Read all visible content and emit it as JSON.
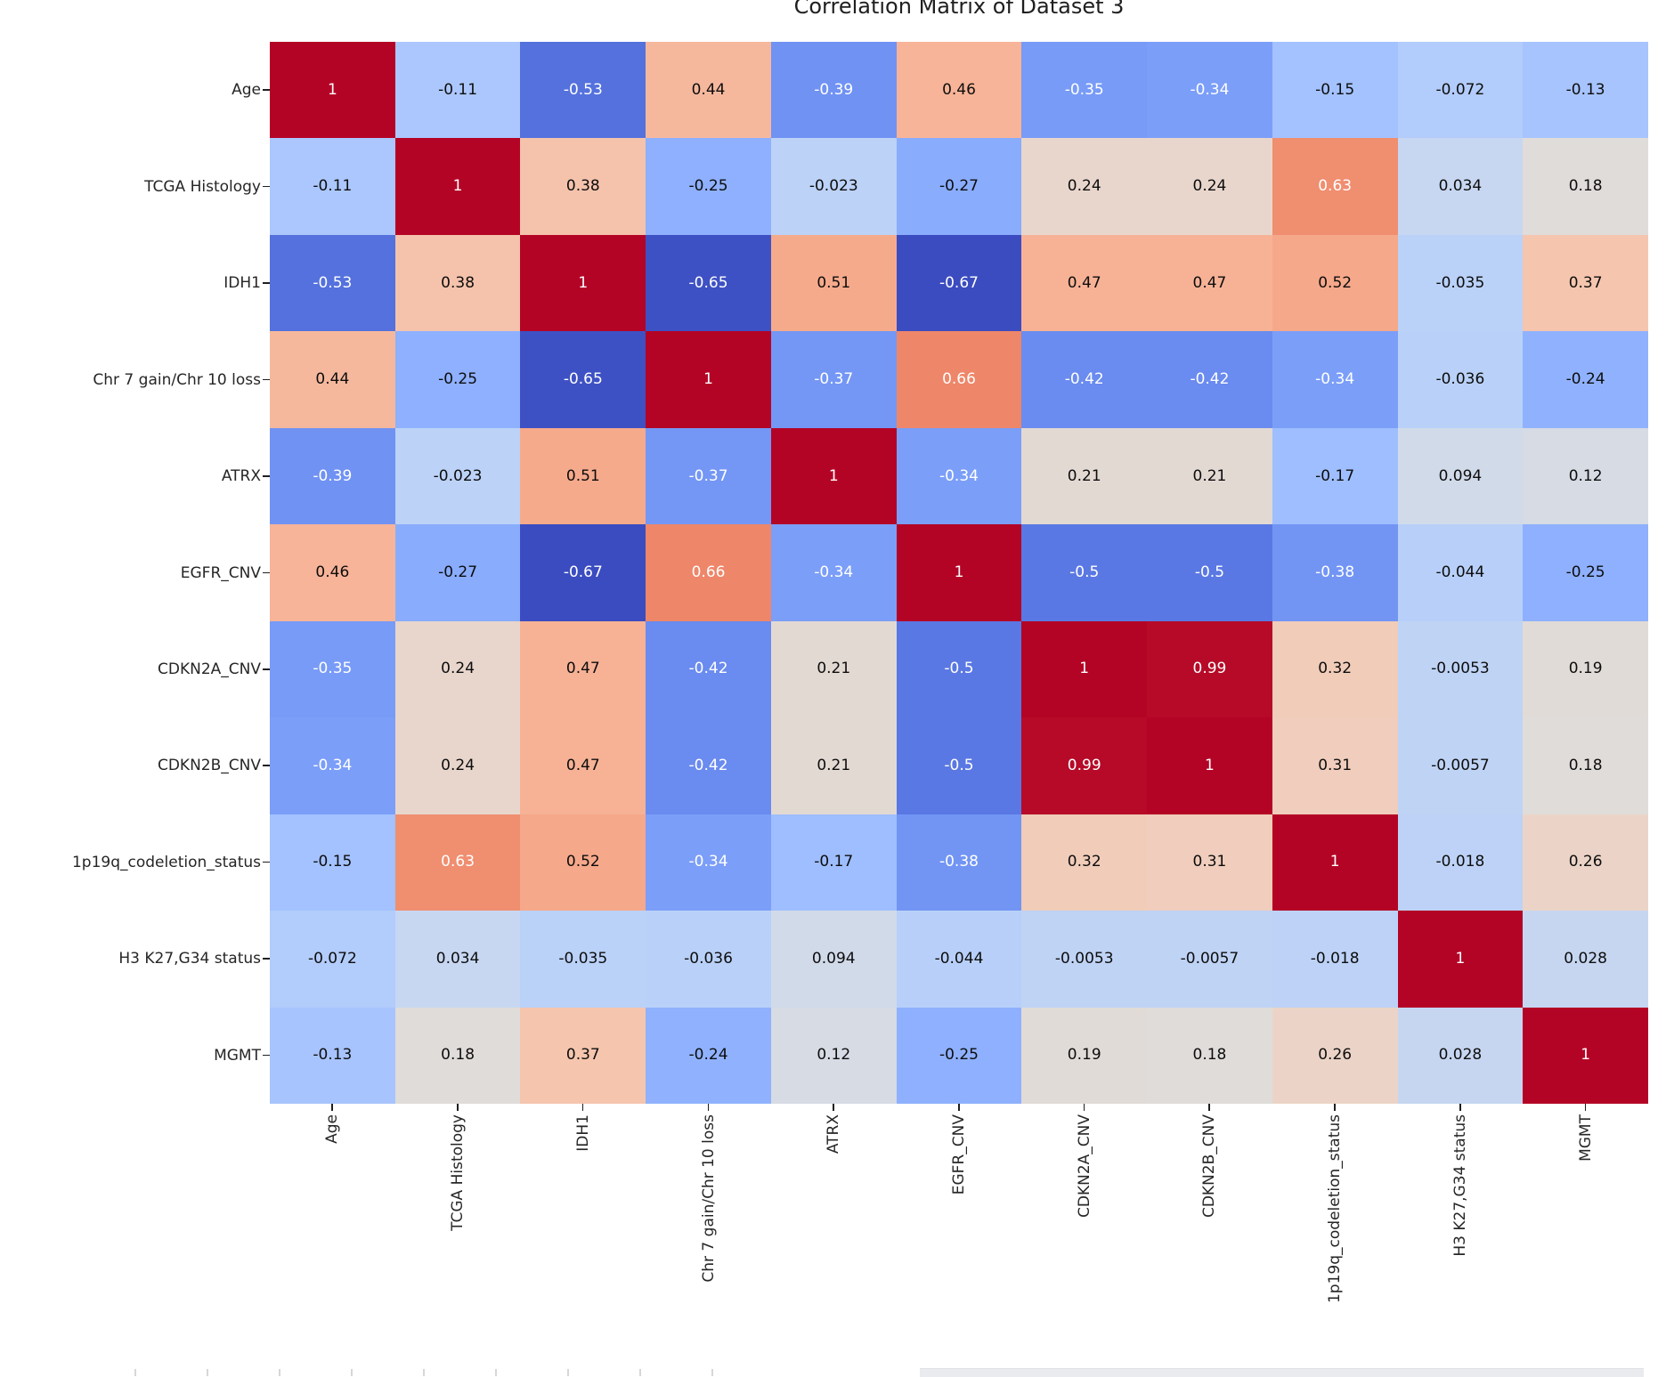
{
  "figure": {
    "title": "Correlation Matrix of Dataset 3"
  },
  "chart_data": {
    "type": "heatmap",
    "title": "Correlation Matrix of Dataset 3",
    "variables": [
      "Age",
      "TCGA Histology",
      "IDH1",
      "Chr 7 gain/Chr 10 loss",
      "ATRX",
      "EGFR_CNV",
      "CDKN2A_CNV",
      "CDKN2B_CNV",
      "1p19q_codeletion_status",
      "H3 K27,G34 status",
      "MGMT"
    ],
    "matrix": [
      [
        1,
        -0.11,
        -0.53,
        0.44,
        -0.39,
        0.46,
        -0.35,
        -0.34,
        -0.15,
        -0.072,
        -0.13
      ],
      [
        -0.11,
        1,
        0.38,
        -0.25,
        -0.023,
        -0.27,
        0.24,
        0.24,
        0.63,
        0.034,
        0.18
      ],
      [
        -0.53,
        0.38,
        1,
        -0.65,
        0.51,
        -0.67,
        0.47,
        0.47,
        0.52,
        -0.035,
        0.37
      ],
      [
        0.44,
        -0.25,
        -0.65,
        1,
        -0.37,
        0.66,
        -0.42,
        -0.42,
        -0.34,
        -0.036,
        -0.24
      ],
      [
        -0.39,
        -0.023,
        0.51,
        -0.37,
        1,
        -0.34,
        0.21,
        0.21,
        -0.17,
        0.094,
        0.12
      ],
      [
        0.46,
        -0.27,
        -0.67,
        0.66,
        -0.34,
        1,
        -0.5,
        -0.5,
        -0.38,
        -0.044,
        -0.25
      ],
      [
        -0.35,
        0.24,
        0.47,
        -0.42,
        0.21,
        -0.5,
        1,
        0.99,
        0.32,
        -0.0053,
        0.19
      ],
      [
        -0.34,
        0.24,
        0.47,
        -0.42,
        0.21,
        -0.5,
        0.99,
        1,
        0.31,
        -0.0057,
        0.18
      ],
      [
        -0.15,
        0.63,
        0.52,
        -0.34,
        -0.17,
        -0.38,
        0.32,
        0.31,
        1,
        -0.018,
        0.26
      ],
      [
        -0.072,
        0.034,
        -0.035,
        -0.036,
        0.094,
        -0.044,
        -0.0053,
        -0.0057,
        -0.018,
        1,
        0.028
      ],
      [
        -0.13,
        0.18,
        0.37,
        -0.24,
        0.12,
        -0.25,
        0.19,
        0.18,
        0.26,
        0.028,
        1
      ]
    ],
    "colormap": "coolwarm",
    "color_scale": {
      "vmin": -0.67,
      "vmax": 1.0
    },
    "annotation_format": ".2g",
    "axes": {
      "x_tick_rotation": 90,
      "y_tick_rotation": 0,
      "grid": false,
      "colorbar": false
    },
    "annotation_text_colors": {
      "light_cells": "#0d0d0d",
      "dark_cells": "#ffffff"
    },
    "diagonal_color": "#b40426"
  }
}
